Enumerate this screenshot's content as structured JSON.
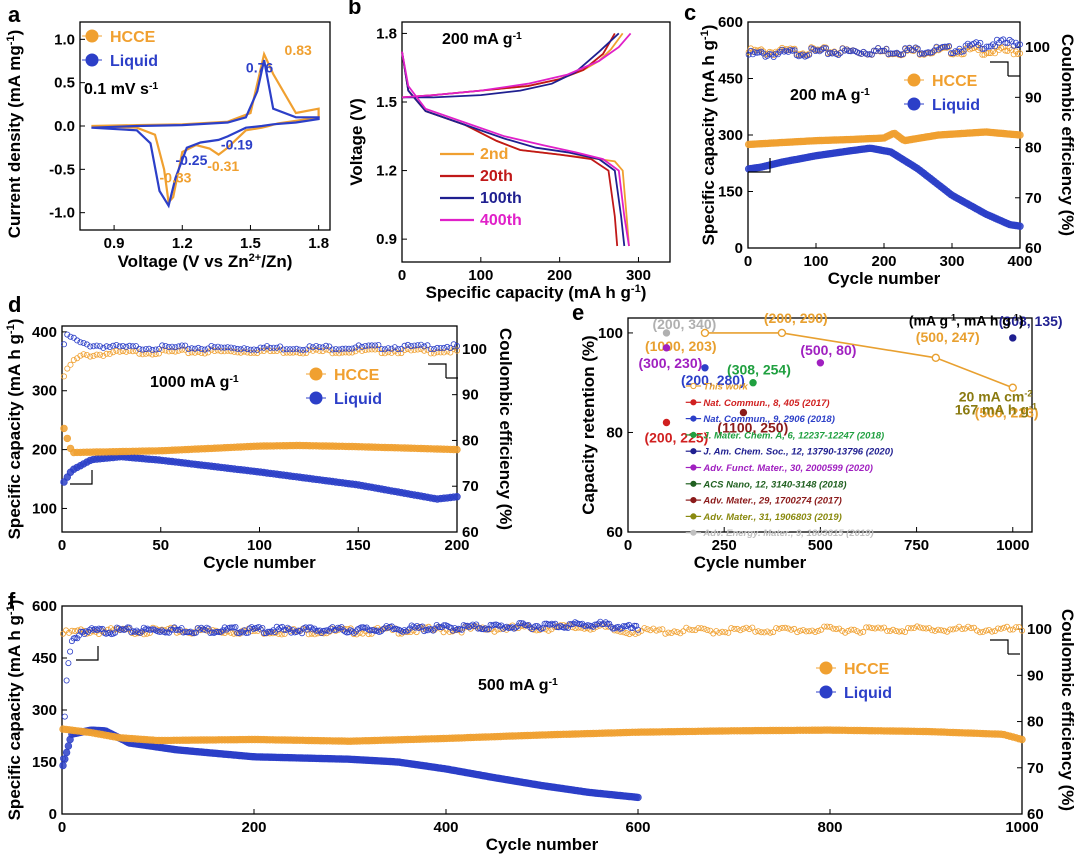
{
  "chart_data": [
    {
      "id": "a",
      "panel_label": "a",
      "type": "line",
      "xlabel": "Voltage (V vs Zn2+/Zn)",
      "ylabel": "Current density (mA mg-1)",
      "xlim": [
        0.75,
        1.85
      ],
      "ylim": [
        -1.2,
        1.2
      ],
      "xticks": [
        "0.9",
        "1.2",
        "1.5",
        "1.8"
      ],
      "xtick_values": [
        0.9,
        1.2,
        1.5,
        1.8
      ],
      "yticks": [
        "-1.0",
        "-0.5",
        "0.0",
        "0.5",
        "1.0"
      ],
      "ytick_values": [
        -1.0,
        -0.5,
        0.0,
        0.5,
        1.0
      ],
      "scan_rate": "0.1 mV s-1",
      "legend": [
        "HCCE",
        "Liquid"
      ],
      "series": [
        {
          "name": "HCCE",
          "color": "#f0a030",
          "x": [
            0.8,
            1.0,
            1.08,
            1.12,
            1.14,
            1.16,
            1.2,
            1.26,
            1.32,
            1.36,
            1.4,
            1.48,
            1.55,
            1.58,
            1.62,
            1.7,
            1.8,
            1.8,
            1.7,
            1.6,
            1.56,
            1.5,
            1.4,
            1.2,
            1.0,
            0.8
          ],
          "y": [
            0.0,
            -0.02,
            -0.1,
            -0.5,
            -0.88,
            -0.82,
            -0.3,
            -0.22,
            -0.26,
            -0.33,
            -0.25,
            -0.05,
            -0.02,
            0.0,
            0.03,
            0.06,
            0.1,
            0.2,
            0.15,
            0.6,
            0.83,
            0.15,
            0.05,
            0.02,
            0.01,
            0.0
          ]
        },
        {
          "name": "Liquid",
          "color": "#2c3fc8",
          "x": [
            0.8,
            1.0,
            1.06,
            1.1,
            1.14,
            1.17,
            1.22,
            1.28,
            1.36,
            1.4,
            1.48,
            1.55,
            1.6,
            1.7,
            1.8,
            1.8,
            1.7,
            1.6,
            1.56,
            1.53,
            1.48,
            1.4,
            1.2,
            1.0,
            0.8
          ],
          "y": [
            -0.02,
            -0.05,
            -0.2,
            -0.75,
            -0.92,
            -0.6,
            -0.25,
            -0.19,
            -0.16,
            -0.12,
            -0.02,
            0.0,
            0.02,
            0.04,
            0.08,
            0.1,
            0.1,
            0.2,
            0.76,
            0.4,
            0.1,
            0.04,
            0.01,
            0.0,
            -0.02
          ]
        }
      ],
      "annotations": [
        {
          "text": "0.76",
          "color": "#2c3fc8"
        },
        {
          "text": "0.83",
          "color": "#f0a030"
        },
        {
          "text": "-0.19",
          "color": "#2c3fc8"
        },
        {
          "text": "-0.25",
          "color": "#2c3fc8"
        },
        {
          "text": "-0.31",
          "color": "#f0a030"
        },
        {
          "text": "-0.33",
          "color": "#f0a030"
        }
      ]
    },
    {
      "id": "b",
      "panel_label": "b",
      "type": "line",
      "xlabel": "Specific capacity (mA h g-1)",
      "ylabel": "Voltage (V)",
      "xlim": [
        0,
        340
      ],
      "ylim": [
        0.8,
        1.85
      ],
      "xticks": [
        "0",
        "100",
        "200",
        "300"
      ],
      "xtick_values": [
        0,
        100,
        200,
        300
      ],
      "yticks": [
        "0.9",
        "1.2",
        "1.5",
        "1.8"
      ],
      "ytick_values": [
        0.9,
        1.2,
        1.5,
        1.8
      ],
      "rate": "200 mA g-1",
      "legend": [
        "2nd",
        "20th",
        "100th",
        "400th"
      ],
      "series": [
        {
          "name": "2nd",
          "color": "#f0a030",
          "discharge": {
            "x": [
              0,
              8,
              30,
              80,
              120,
              150,
              200,
              250,
              270,
              280,
              285,
              288
            ],
            "y": [
              1.72,
              1.55,
              1.46,
              1.4,
              1.33,
              1.29,
              1.27,
              1.25,
              1.24,
              1.2,
              1.0,
              0.87
            ]
          },
          "charge": {
            "x": [
              0,
              40,
              100,
              160,
              200,
              230,
              250,
              265,
              280
            ],
            "y": [
              1.52,
              1.53,
              1.55,
              1.57,
              1.6,
              1.64,
              1.68,
              1.73,
              1.8
            ]
          }
        },
        {
          "name": "20th",
          "color": "#c01818",
          "discharge": {
            "x": [
              0,
              8,
              30,
              80,
              120,
              150,
              200,
              240,
              262,
              270,
              273
            ],
            "y": [
              1.72,
              1.55,
              1.46,
              1.4,
              1.33,
              1.29,
              1.27,
              1.25,
              1.2,
              1.0,
              0.87
            ]
          },
          "charge": {
            "x": [
              0,
              40,
              100,
              160,
              200,
              230,
              255,
              270
            ],
            "y": [
              1.52,
              1.53,
              1.55,
              1.57,
              1.6,
              1.64,
              1.71,
              1.8
            ]
          }
        },
        {
          "name": "100th",
          "color": "#1f1f90",
          "discharge": {
            "x": [
              0,
              8,
              30,
              80,
              130,
              170,
              210,
              250,
              270,
              278,
              282
            ],
            "y": [
              1.72,
              1.55,
              1.46,
              1.4,
              1.34,
              1.3,
              1.28,
              1.25,
              1.2,
              1.0,
              0.87
            ]
          },
          "charge": {
            "x": [
              0,
              40,
              100,
              150,
              190,
              220,
              250,
              275
            ],
            "y": [
              1.52,
              1.52,
              1.53,
              1.55,
              1.58,
              1.63,
              1.72,
              1.8
            ]
          }
        },
        {
          "name": "400th",
          "color": "#e020c8",
          "discharge": {
            "x": [
              0,
              8,
              30,
              80,
              130,
              180,
              220,
              255,
              275,
              282,
              288
            ],
            "y": [
              1.72,
              1.57,
              1.47,
              1.41,
              1.35,
              1.31,
              1.28,
              1.25,
              1.2,
              1.0,
              0.87
            ]
          },
          "charge": {
            "x": [
              0,
              40,
              100,
              160,
              210,
              250,
              275,
              290
            ],
            "y": [
              1.52,
              1.53,
              1.55,
              1.58,
              1.62,
              1.68,
              1.74,
              1.8
            ]
          }
        }
      ]
    },
    {
      "id": "c",
      "panel_label": "c",
      "type": "scatter",
      "xlabel": "Cycle number",
      "ylabel": "Specific capacity (mA h g-1)",
      "y2label": "Coulombic efficiency (%)",
      "xlim": [
        0,
        400
      ],
      "ylim": [
        0,
        600
      ],
      "y2lim": [
        60,
        105
      ],
      "xticks": [
        "0",
        "100",
        "200",
        "300",
        "400"
      ],
      "xtick_values": [
        0,
        100,
        200,
        300,
        400
      ],
      "yticks": [
        "0",
        "150",
        "300",
        "450",
        "600"
      ],
      "ytick_values": [
        0,
        150,
        300,
        450,
        600
      ],
      "y2ticks": [
        "60",
        "70",
        "80",
        "90",
        "100"
      ],
      "y2tick_values": [
        60,
        70,
        80,
        90,
        100
      ],
      "rate": "200 mA g-1",
      "legend": [
        "HCCE",
        "Liquid"
      ],
      "series": [
        {
          "name": "HCCE",
          "color": "#f0a030",
          "x": [
            1,
            50,
            100,
            150,
            200,
            215,
            230,
            280,
            350,
            400
          ],
          "y": [
            275,
            280,
            285,
            288,
            292,
            305,
            285,
            300,
            308,
            300
          ],
          "ce_x": [
            1,
            100,
            200,
            300,
            400
          ],
          "ce_y": [
            99,
            99.2,
            99.1,
            99.3,
            99.2
          ]
        },
        {
          "name": "Liquid",
          "color": "#2c3fc8",
          "x": [
            1,
            20,
            50,
            100,
            150,
            180,
            210,
            250,
            300,
            350,
            385,
            400
          ],
          "y": [
            210,
            215,
            228,
            245,
            258,
            265,
            255,
            210,
            140,
            90,
            62,
            58
          ],
          "ce_x": [
            1,
            100,
            200,
            300,
            350,
            400
          ],
          "ce_y": [
            98.5,
            99,
            99.2,
            99.5,
            100.5,
            101
          ]
        }
      ]
    },
    {
      "id": "d",
      "panel_label": "d",
      "type": "scatter",
      "xlabel": "Cycle number",
      "ylabel": "Specific capacity (mA h g-1)",
      "y2label": "Coulombic efficiency (%)",
      "xlim": [
        0,
        200
      ],
      "ylim": [
        60,
        410
      ],
      "y2lim": [
        60,
        105
      ],
      "xticks": [
        "0",
        "50",
        "100",
        "150",
        "200"
      ],
      "xtick_values": [
        0,
        50,
        100,
        150,
        200
      ],
      "yticks": [
        "100",
        "200",
        "300",
        "400"
      ],
      "ytick_values": [
        100,
        200,
        300,
        400
      ],
      "y2ticks": [
        "60",
        "70",
        "80",
        "90",
        "100"
      ],
      "y2tick_values": [
        60,
        70,
        80,
        90,
        100
      ],
      "rate": "1000 mA g-1",
      "legend": [
        "HCCE",
        "Liquid"
      ],
      "series": [
        {
          "name": "HCCE",
          "color": "#f0a030",
          "x": [
            1,
            5,
            20,
            50,
            100,
            120,
            150,
            200
          ],
          "y": [
            236,
            195,
            196,
            198,
            206,
            207,
            205,
            200
          ],
          "ce_x": [
            1,
            5,
            10,
            30,
            100,
            200
          ],
          "ce_y": [
            94,
            97,
            98.5,
            99.2,
            99.5,
            99.5
          ]
        },
        {
          "name": "Liquid",
          "color": "#2c3fc8",
          "x": [
            1,
            5,
            15,
            30,
            50,
            100,
            150,
            180,
            190,
            200
          ],
          "y": [
            145,
            165,
            183,
            188,
            182,
            162,
            140,
            122,
            116,
            120
          ],
          "ce_x": [
            1,
            3,
            10,
            30,
            100,
            200
          ],
          "ce_y": [
            101,
            103,
            101,
            100.3,
            100.2,
            100.5
          ]
        }
      ]
    },
    {
      "id": "e",
      "panel_label": "e",
      "type": "scatter",
      "xlabel": "Cycle number",
      "ylabel": "Capacity retention (%)",
      "xlim": [
        0,
        1050
      ],
      "ylim": [
        60,
        103
      ],
      "xticks": [
        "0",
        "250",
        "500",
        "750",
        "1000"
      ],
      "xtick_values": [
        0,
        250,
        500,
        750,
        1000
      ],
      "yticks": [
        "60",
        "80",
        "100"
      ],
      "ytick_values": [
        60,
        80,
        100
      ],
      "units_note": "(mA g-1, mA h g-1)",
      "this_work": {
        "color": "#e8a030",
        "x": [
          200,
          400,
          800,
          1000
        ],
        "y": [
          100,
          100,
          95,
          89
        ]
      },
      "this_work_labels": [
        "(1000, 203)",
        "(200, 290)",
        "(500, 247)",
        "(500, 223)"
      ],
      "condition_note_1": "20 mA cm-2",
      "condition_note_2": "167 mA h g-1",
      "points": [
        {
          "label": "(200, 225)",
          "x": 100,
          "y": 82,
          "color": "#d02020"
        },
        {
          "label": "(200, 280)",
          "x": 200,
          "y": 93,
          "color": "#2c3fc8"
        },
        {
          "label": "(308, 254)",
          "x": 325,
          "y": 90,
          "color": "#20a040"
        },
        {
          "label": "(308, 135)",
          "x": 1000,
          "y": 99,
          "color": "#1f1f90"
        },
        {
          "label": "(300, 230)",
          "x": 100,
          "y": 97,
          "color": "#a020c0"
        },
        {
          "label": "(1100, 250)",
          "x": 300,
          "y": 84,
          "color": "#8b1a1a"
        },
        {
          "label": "(500, 80)",
          "x": 500,
          "y": 94,
          "color": "#a020c0"
        },
        {
          "label": "(200, 340)",
          "x": 100,
          "y": 100,
          "color": "#b0b0b0"
        }
      ],
      "legend": [
        {
          "text": "This work",
          "color": "#e8a030"
        },
        {
          "text": "Nat. Commun., 8, 405 (2017)",
          "color": "#d02020"
        },
        {
          "text": "Nat. Commun., 9, 2906 (2018)",
          "color": "#2c3fc8"
        },
        {
          "text": "J. Mater. Chem. A, 6, 12237-12247 (2018)",
          "color": "#20a040"
        },
        {
          "text": "J. Am. Chem. Soc., 12, 13790-13796 (2020)",
          "color": "#1f1f90"
        },
        {
          "text": "Adv. Funct. Mater., 30, 2000599 (2020)",
          "color": "#a020c0"
        },
        {
          "text": "ACS Nano, 12, 3140-3148 (2018)",
          "color": "#206020"
        },
        {
          "text": "Adv. Mater., 29, 1700274 (2017)",
          "color": "#8b1a1a"
        },
        {
          "text": "Adv. Mater., 31, 1906803 (2019)",
          "color": "#8a8a10"
        },
        {
          "text": "Adv. Energy. Mater., 9, 1803815 (2019)",
          "color": "#c0c0c0"
        }
      ]
    },
    {
      "id": "f",
      "panel_label": "f",
      "type": "scatter",
      "xlabel": "Cycle number",
      "ylabel": "Specific capacity (mA h g-1)",
      "y2label": "Coulombic efficiency (%)",
      "xlim": [
        0,
        1000
      ],
      "ylim": [
        0,
        600
      ],
      "y2lim": [
        60,
        105
      ],
      "xticks": [
        "0",
        "200",
        "400",
        "600",
        "800",
        "1000"
      ],
      "xtick_values": [
        0,
        200,
        400,
        600,
        800,
        1000
      ],
      "yticks": [
        "0",
        "150",
        "300",
        "450",
        "600"
      ],
      "ytick_values": [
        0,
        150,
        300,
        450,
        600
      ],
      "y2ticks": [
        "60",
        "70",
        "80",
        "90",
        "100"
      ],
      "y2tick_values": [
        60,
        70,
        80,
        90,
        100
      ],
      "rate": "500 mA g-1",
      "legend": [
        "HCCE",
        "Liquid"
      ],
      "series": [
        {
          "name": "HCCE",
          "color": "#f0a030",
          "x": [
            1,
            30,
            60,
            100,
            200,
            300,
            400,
            500,
            600,
            700,
            800,
            900,
            980,
            1000
          ],
          "y": [
            245,
            235,
            220,
            212,
            215,
            210,
            218,
            228,
            236,
            240,
            242,
            238,
            230,
            215
          ],
          "ce_x": [
            1,
            20,
            100,
            300,
            560,
            580,
            700,
            880,
            1000
          ],
          "ce_y": [
            99,
            99.5,
            99.6,
            99.5,
            100.5,
            99.5,
            99.7,
            100,
            99.8
          ]
        },
        {
          "name": "Liquid",
          "color": "#2c3fc8",
          "x": [
            1,
            10,
            30,
            45,
            70,
            120,
            200,
            300,
            350,
            400,
            450,
            500,
            550,
            600
          ],
          "y": [
            140,
            230,
            242,
            240,
            205,
            185,
            165,
            158,
            150,
            130,
            105,
            82,
            62,
            48
          ],
          "ce_x": [
            1,
            5,
            10,
            20,
            100,
            300,
            560,
            600
          ],
          "ce_y": [
            72,
            90,
            97,
            99.5,
            99.8,
            99.8,
            101,
            100
          ]
        }
      ]
    }
  ]
}
